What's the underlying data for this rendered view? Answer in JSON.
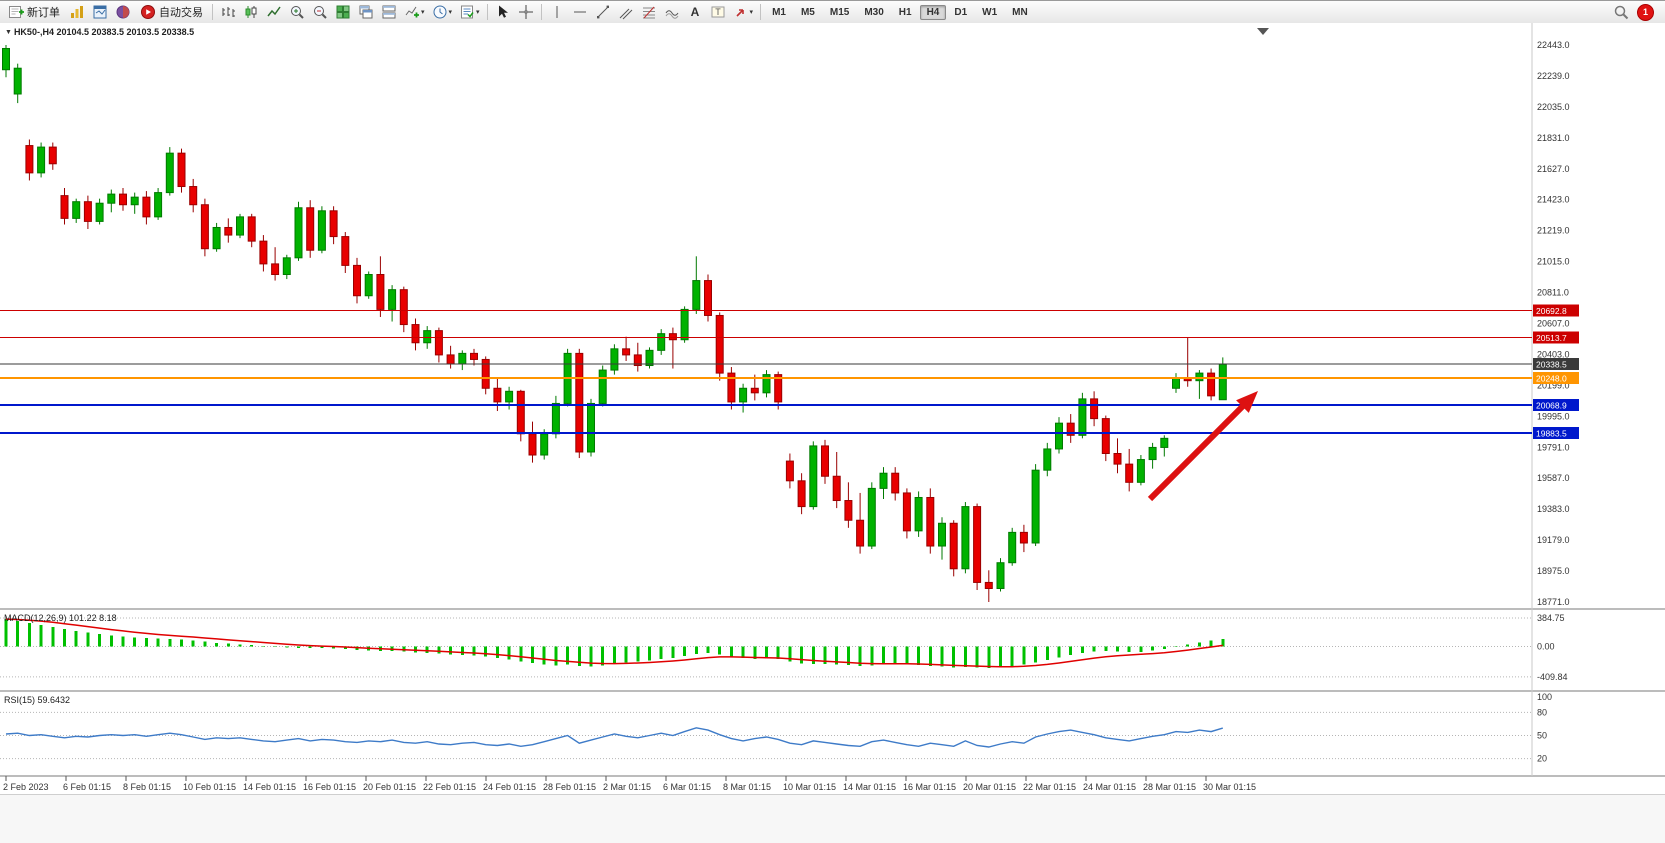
{
  "toolbar": {
    "new_order_label": "新订单",
    "autotrading_label": "自动交易",
    "timeframes": [
      "M1",
      "M5",
      "M15",
      "M30",
      "H1",
      "H4",
      "D1",
      "W1",
      "MN"
    ],
    "active_timeframe": "H4",
    "badge_count": "1"
  },
  "chart": {
    "title": "HK50-,H4",
    "ohlc": "20104.5 20383.5 20103.5 20338.5",
    "price_axis": [
      "22443.0",
      "22239.0",
      "22035.0",
      "21831.0",
      "21627.0",
      "21423.0",
      "21219.0",
      "21015.0",
      "20811.0",
      "20607.0",
      "20403.0",
      "20199.0",
      "19995.0",
      "19791.0",
      "19587.0",
      "19383.0",
      "19179.0",
      "18975.0",
      "18771.0"
    ],
    "time_axis": [
      "2 Feb 2023",
      "6 Feb 01:15",
      "8 Feb 01:15",
      "10 Feb 01:15",
      "14 Feb 01:15",
      "16 Feb 01:15",
      "20 Feb 01:15",
      "22 Feb 01:15",
      "24 Feb 01:15",
      "28 Feb 01:15",
      "2 Mar 01:15",
      "6 Mar 01:15",
      "8 Mar 01:15",
      "10 Mar 01:15",
      "14 Mar 01:15",
      "16 Mar 01:15",
      "20 Mar 01:15",
      "22 Mar 01:15",
      "24 Mar 01:15",
      "28 Mar 01:15",
      "30 Mar 01:15"
    ],
    "indicators": {
      "macd": {
        "label": "MACD(12,26,9)",
        "values": "101.22 8.18",
        "axis": [
          "384.75",
          "0.00",
          "-409.84"
        ]
      },
      "rsi": {
        "label": "RSI(15)",
        "value": "59.6432",
        "axis": [
          "100",
          "80",
          "50",
          "20"
        ]
      }
    }
  },
  "chart_data": {
    "type": "candlestick",
    "symbol": "HK50-",
    "timeframe": "H4",
    "title": "HK50-,H4 20104.5 20383.5 20103.5 20338.5",
    "ylim": [
      18771.0,
      22443.0
    ],
    "colors": {
      "up": "#00b200",
      "up_dark": "#007a00",
      "down": "#e80000",
      "down_dark": "#9a0000",
      "macd_bar": "#00c000",
      "macd_signal": "#e00000",
      "rsi_line": "#3e7bc8"
    },
    "candles_ohlc": [
      [
        22280,
        22443,
        22230,
        22420
      ],
      [
        22120,
        22320,
        22060,
        22290
      ],
      [
        21780,
        21820,
        21550,
        21600
      ],
      [
        21600,
        21800,
        21570,
        21770
      ],
      [
        21770,
        21800,
        21620,
        21660
      ],
      [
        21450,
        21500,
        21260,
        21300
      ],
      [
        21300,
        21430,
        21270,
        21410
      ],
      [
        21410,
        21450,
        21230,
        21280
      ],
      [
        21280,
        21430,
        21260,
        21400
      ],
      [
        21400,
        21490,
        21340,
        21460
      ],
      [
        21460,
        21500,
        21350,
        21390
      ],
      [
        21390,
        21470,
        21330,
        21440
      ],
      [
        21440,
        21480,
        21260,
        21310
      ],
      [
        21310,
        21500,
        21290,
        21470
      ],
      [
        21470,
        21770,
        21450,
        21730
      ],
      [
        21730,
        21760,
        21470,
        21510
      ],
      [
        21510,
        21560,
        21340,
        21390
      ],
      [
        21390,
        21430,
        21050,
        21100
      ],
      [
        21100,
        21270,
        21080,
        21240
      ],
      [
        21240,
        21300,
        21140,
        21190
      ],
      [
        21190,
        21330,
        21170,
        21310
      ],
      [
        21310,
        21330,
        21110,
        21150
      ],
      [
        21150,
        21190,
        20950,
        21000
      ],
      [
        21000,
        21110,
        20890,
        20930
      ],
      [
        20930,
        21060,
        20900,
        21040
      ],
      [
        21040,
        21410,
        21020,
        21370
      ],
      [
        21370,
        21420,
        21040,
        21090
      ],
      [
        21090,
        21380,
        21070,
        21350
      ],
      [
        21350,
        21380,
        21130,
        21180
      ],
      [
        21180,
        21210,
        20940,
        20990
      ],
      [
        20990,
        21040,
        20740,
        20790
      ],
      [
        20790,
        20950,
        20770,
        20930
      ],
      [
        20930,
        21050,
        20650,
        20700
      ],
      [
        20700,
        20860,
        20620,
        20830
      ],
      [
        20830,
        20850,
        20550,
        20600
      ],
      [
        20600,
        20640,
        20430,
        20480
      ],
      [
        20480,
        20590,
        20440,
        20560
      ],
      [
        20560,
        20580,
        20350,
        20400
      ],
      [
        20400,
        20460,
        20310,
        20340
      ],
      [
        20340,
        20430,
        20300,
        20410
      ],
      [
        20410,
        20440,
        20330,
        20370
      ],
      [
        20370,
        20390,
        20140,
        20180
      ],
      [
        20180,
        20250,
        20030,
        20090
      ],
      [
        20090,
        20190,
        20040,
        20160
      ],
      [
        20160,
        20170,
        19830,
        19880
      ],
      [
        19880,
        19960,
        19690,
        19740
      ],
      [
        19740,
        19910,
        19710,
        19880
      ],
      [
        19880,
        20130,
        19850,
        20080
      ],
      [
        20080,
        20440,
        20060,
        20410
      ],
      [
        20410,
        20440,
        19720,
        19760
      ],
      [
        19760,
        20110,
        19730,
        20080
      ],
      [
        20080,
        20330,
        20060,
        20300
      ],
      [
        20300,
        20470,
        20270,
        20440
      ],
      [
        20440,
        20520,
        20360,
        20400
      ],
      [
        20400,
        20480,
        20290,
        20330
      ],
      [
        20330,
        20450,
        20310,
        20430
      ],
      [
        20430,
        20570,
        20400,
        20540
      ],
      [
        20540,
        20580,
        20310,
        20500
      ],
      [
        20500,
        20720,
        20480,
        20700
      ],
      [
        20700,
        21050,
        20670,
        20890
      ],
      [
        20890,
        20930,
        20620,
        20660
      ],
      [
        20660,
        20680,
        20230,
        20280
      ],
      [
        20280,
        20320,
        20040,
        20090
      ],
      [
        20090,
        20210,
        20020,
        20180
      ],
      [
        20180,
        20270,
        20100,
        20150
      ],
      [
        20150,
        20300,
        20120,
        20270
      ],
      [
        20270,
        20290,
        20040,
        20090
      ],
      [
        19700,
        19750,
        19520,
        19570
      ],
      [
        19570,
        19620,
        19350,
        19400
      ],
      [
        19400,
        19830,
        19380,
        19800
      ],
      [
        19800,
        19840,
        19550,
        19600
      ],
      [
        19600,
        19760,
        19390,
        19440
      ],
      [
        19440,
        19560,
        19260,
        19310
      ],
      [
        19310,
        19490,
        19090,
        19140
      ],
      [
        19140,
        19560,
        19120,
        19520
      ],
      [
        19520,
        19660,
        19450,
        19620
      ],
      [
        19620,
        19660,
        19440,
        19490
      ],
      [
        19490,
        19520,
        19190,
        19240
      ],
      [
        19240,
        19500,
        19200,
        19460
      ],
      [
        19460,
        19520,
        19090,
        19140
      ],
      [
        19140,
        19330,
        19050,
        19290
      ],
      [
        19290,
        19310,
        18940,
        18990
      ],
      [
        18990,
        19430,
        18960,
        19400
      ],
      [
        19400,
        19420,
        18850,
        18900
      ],
      [
        18900,
        18980,
        18771,
        18860
      ],
      [
        18860,
        19060,
        18840,
        19030
      ],
      [
        19030,
        19260,
        19010,
        19230
      ],
      [
        19230,
        19280,
        19100,
        19160
      ],
      [
        19160,
        19680,
        19140,
        19640
      ],
      [
        19640,
        19820,
        19600,
        19780
      ],
      [
        19780,
        19990,
        19750,
        19950
      ],
      [
        19950,
        20010,
        19820,
        19870
      ],
      [
        19870,
        20150,
        19850,
        20110
      ],
      [
        20110,
        20160,
        19930,
        19980
      ],
      [
        19980,
        20000,
        19700,
        19750
      ],
      [
        19750,
        19850,
        19620,
        19680
      ],
      [
        19680,
        19780,
        19500,
        19560
      ],
      [
        19560,
        19740,
        19540,
        19710
      ],
      [
        19710,
        19820,
        19650,
        19790
      ],
      [
        19790,
        19870,
        19730,
        19850
      ],
      [
        20180,
        20280,
        20150,
        20250
      ],
      [
        20250,
        20513,
        20190,
        20230
      ],
      [
        20230,
        20300,
        20110,
        20280
      ],
      [
        20280,
        20310,
        20100,
        20130
      ],
      [
        20104.5,
        20383.5,
        20103.5,
        20338.5
      ]
    ],
    "macd_histogram": [
      370,
      345,
      318,
      290,
      262,
      235,
      210,
      188,
      168,
      150,
      135,
      122,
      112,
      105,
      102,
      95,
      82,
      65,
      50,
      38,
      30,
      20,
      8,
      -5,
      -15,
      -20,
      -22,
      -20,
      -25,
      -35,
      -48,
      -55,
      -58,
      -60,
      -68,
      -78,
      -85,
      -95,
      -105,
      -112,
      -120,
      -135,
      -155,
      -175,
      -200,
      -225,
      -245,
      -255,
      -245,
      -260,
      -268,
      -255,
      -235,
      -215,
      -200,
      -188,
      -170,
      -155,
      -130,
      -100,
      -85,
      -105,
      -135,
      -158,
      -168,
      -162,
      -172,
      -200,
      -228,
      -238,
      -236,
      -242,
      -250,
      -262,
      -255,
      -242,
      -232,
      -238,
      -248,
      -262,
      -272,
      -282,
      -278,
      -285,
      -292,
      -285,
      -268,
      -246,
      -215,
      -180,
      -146,
      -116,
      -90,
      -70,
      -60,
      -68,
      -76,
      -72,
      -56,
      -32,
      -5,
      28,
      55,
      80,
      101.22
    ],
    "rsi_values": [
      52,
      53,
      50,
      51,
      49,
      47,
      49,
      48,
      50,
      51,
      50,
      51,
      49,
      51,
      53,
      51,
      48,
      45,
      47,
      46,
      47,
      45,
      43,
      42,
      44,
      46,
      43,
      45,
      44,
      42,
      41,
      43,
      42,
      44,
      41,
      40,
      42,
      39,
      38,
      40,
      41,
      38,
      37,
      39,
      36,
      38,
      42,
      46,
      50,
      40,
      44,
      48,
      52,
      49,
      47,
      50,
      53,
      50,
      55,
      60,
      57,
      51,
      46,
      43,
      46,
      48,
      45,
      40,
      38,
      43,
      41,
      39,
      37,
      36,
      42,
      44,
      41,
      38,
      36,
      40,
      38,
      36,
      43,
      37,
      35,
      39,
      42,
      40,
      48,
      52,
      55,
      57,
      54,
      51,
      47,
      45,
      43,
      46,
      49,
      51,
      55,
      54,
      57,
      55,
      59.64
    ],
    "hlines": [
      {
        "price": 20692.8,
        "label": "20692.8",
        "color": "#cc0000",
        "width": 1
      },
      {
        "price": 20513.7,
        "label": "20513.7",
        "color": "#cc0000",
        "width": 1
      },
      {
        "price": 20338.5,
        "label": "20338.5",
        "color": "#3a3a3a",
        "width": 1
      },
      {
        "price": 20248.0,
        "label": "20248.0",
        "color": "#ff9500",
        "width": 2
      },
      {
        "price": 20068.9,
        "label": "20068.9",
        "color": "#0018cc",
        "width": 2
      },
      {
        "price": 19883.5,
        "label": "19883.5",
        "color": "#0018cc",
        "width": 2
      }
    ],
    "arrow": {
      "from": [
        1150,
        476
      ],
      "to": [
        1258,
        368
      ],
      "color": "#dd1111"
    }
  }
}
